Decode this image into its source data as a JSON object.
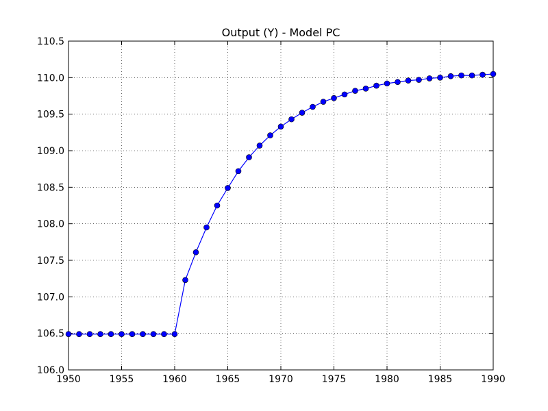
{
  "chart_data": {
    "type": "line",
    "title": "Output (Y) - Model PC",
    "x": [
      1950,
      1951,
      1952,
      1953,
      1954,
      1955,
      1956,
      1957,
      1958,
      1959,
      1960,
      1961,
      1962,
      1963,
      1964,
      1965,
      1966,
      1967,
      1968,
      1969,
      1970,
      1971,
      1972,
      1973,
      1974,
      1975,
      1976,
      1977,
      1978,
      1979,
      1980,
      1981,
      1982,
      1983,
      1984,
      1985,
      1986,
      1987,
      1988,
      1989,
      1990
    ],
    "values": [
      106.49,
      106.49,
      106.49,
      106.49,
      106.49,
      106.49,
      106.49,
      106.49,
      106.49,
      106.49,
      106.49,
      107.23,
      107.61,
      107.95,
      108.25,
      108.49,
      108.72,
      108.91,
      109.07,
      109.21,
      109.33,
      109.43,
      109.52,
      109.6,
      109.67,
      109.72,
      109.77,
      109.82,
      109.85,
      109.89,
      109.92,
      109.94,
      109.96,
      109.97,
      109.99,
      110.0,
      110.02,
      110.03,
      110.03,
      110.04,
      110.05
    ],
    "color": "#0000ff",
    "xlim": [
      1950,
      1990
    ],
    "xticks": [
      1950,
      1955,
      1960,
      1965,
      1970,
      1975,
      1980,
      1985,
      1990
    ],
    "ylim": [
      106.0,
      110.5
    ],
    "yticks": [
      {
        "value": 106.0,
        "label": "106.0"
      },
      106.5,
      {
        "value": 107.0,
        "label": "107.0"
      },
      107.5,
      {
        "value": 108.0,
        "label": "108.0"
      },
      108.5,
      {
        "value": 109.0,
        "label": "109.0"
      },
      109.5,
      {
        "value": 110.0,
        "label": "110.0"
      },
      110.5
    ],
    "grid": true
  }
}
